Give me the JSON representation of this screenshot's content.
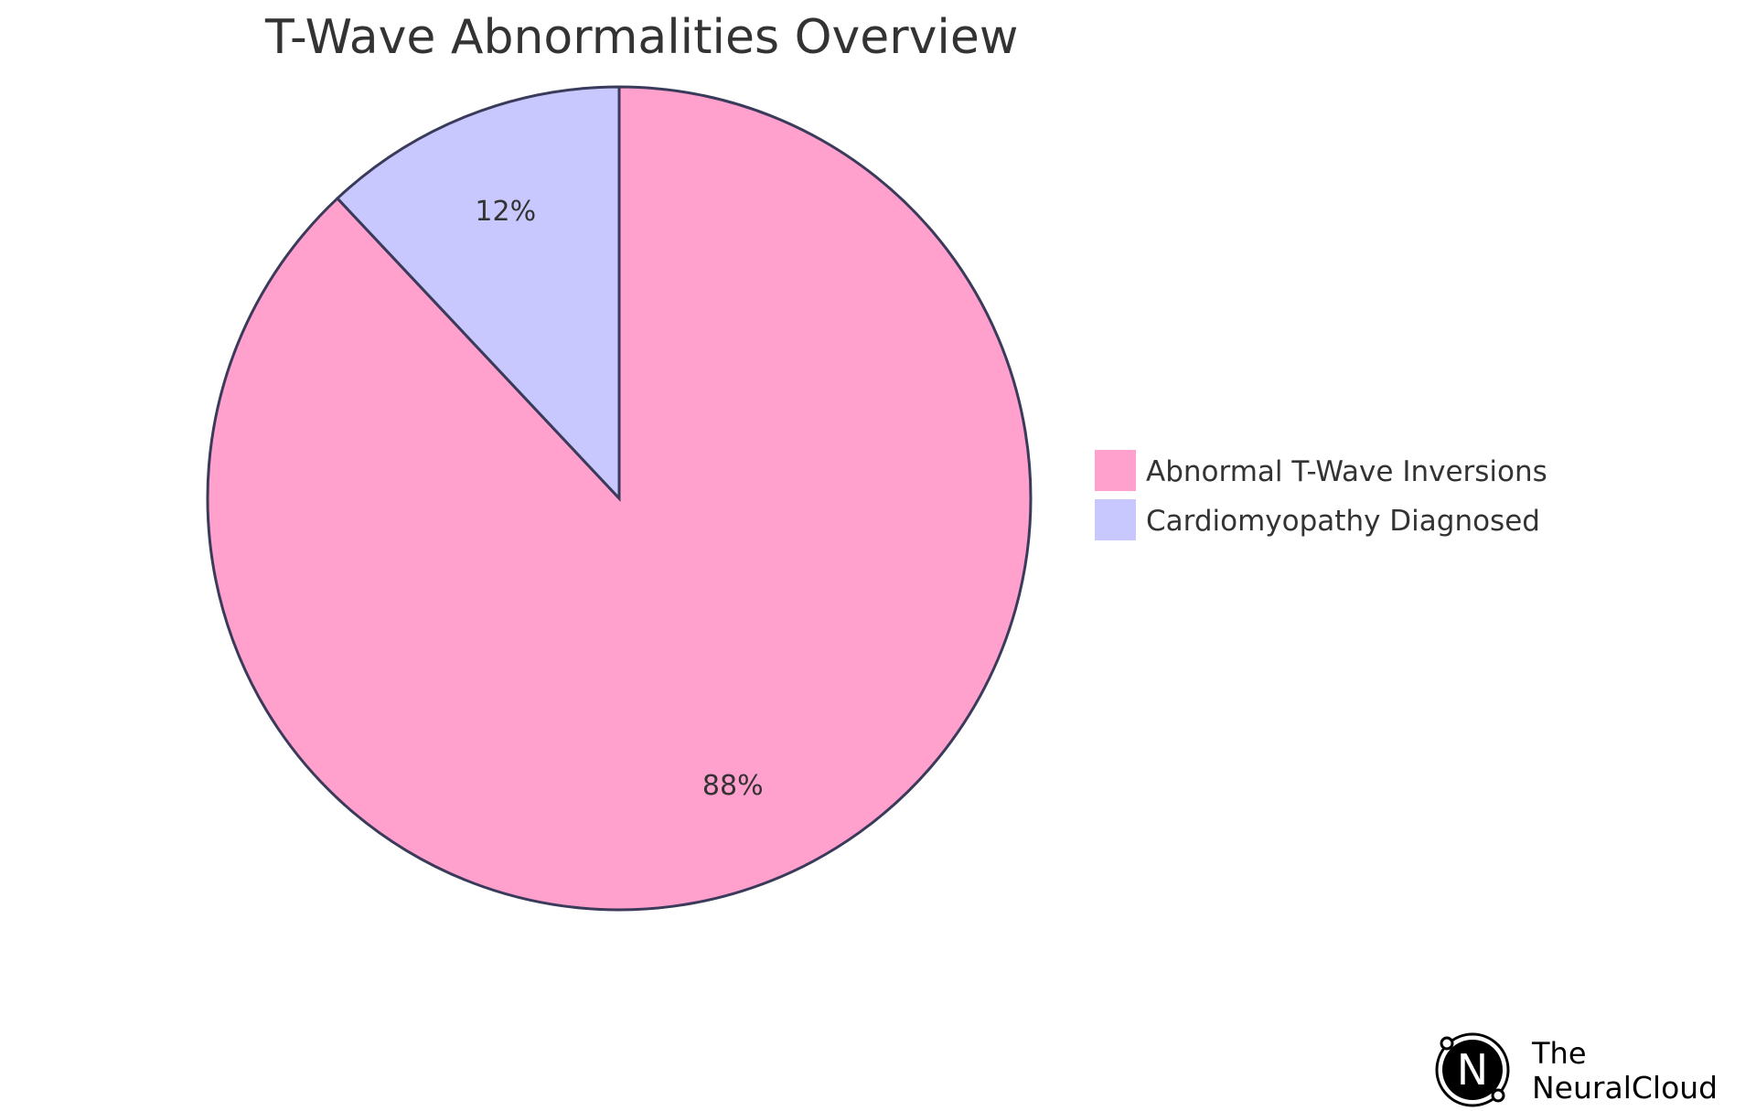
{
  "chart_data": {
    "type": "pie",
    "title": "T-Wave Abnormalities Overview",
    "slices": [
      {
        "name": "Abnormal T-Wave Inversions",
        "value": 88,
        "label": "88%",
        "color": "#FFA0CD"
      },
      {
        "name": "Cardiomyopathy Diagnosed",
        "value": 12,
        "label": "12%",
        "color": "#C8C8FF"
      }
    ],
    "stroke_color": "#3A3A5A",
    "legend_position": "right"
  },
  "logo": {
    "the": "The",
    "name": "NeuralCloud",
    "letter": "N"
  }
}
